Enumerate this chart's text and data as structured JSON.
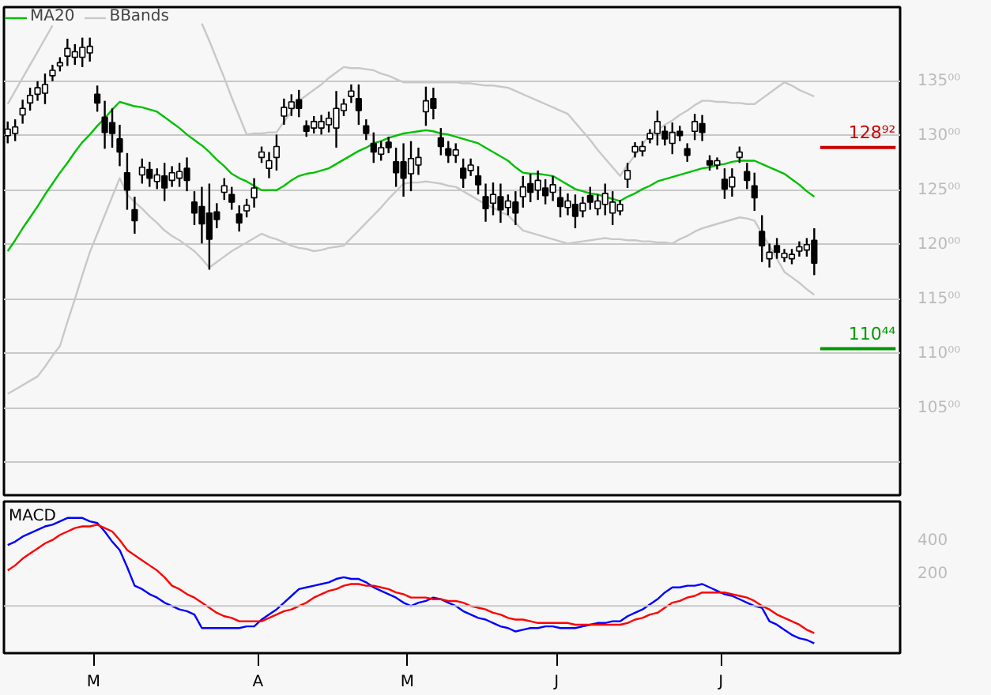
{
  "chart_data": [
    {
      "type": "candlestick",
      "legend": "top left",
      "grid": "y",
      "tick_labels": "y",
      "categories": [
        null,
        null,
        null,
        null,
        null,
        null,
        null,
        null,
        null,
        null,
        null,
        null,
        null,
        null,
        null,
        null,
        null,
        null,
        null,
        null,
        null,
        null,
        null,
        null,
        null,
        null,
        null,
        null,
        null,
        null,
        null,
        null,
        null,
        null,
        null,
        null,
        null,
        null,
        null,
        null,
        null,
        null,
        null,
        null,
        null,
        null,
        null,
        null,
        null,
        null,
        null,
        null,
        null,
        null,
        null,
        null,
        null,
        null,
        null,
        null,
        null,
        null,
        null,
        null,
        null,
        null,
        null,
        null,
        null,
        null,
        null,
        null,
        null,
        null,
        null,
        null,
        null,
        null,
        null,
        null,
        null,
        null,
        null,
        null,
        null,
        null,
        null,
        null,
        null,
        null,
        null,
        null,
        null,
        null,
        null,
        null,
        null,
        null,
        null,
        null,
        null,
        null,
        null,
        null,
        null,
        null,
        null,
        null,
        null
      ],
      "ohlc": [
        [
          130.0,
          131.3,
          129.3,
          130.6
        ],
        [
          130.2,
          131.5,
          129.5,
          130.8
        ],
        [
          131.9,
          133.3,
          131.1,
          132.5
        ],
        [
          133.0,
          134.4,
          132.3,
          133.7
        ],
        [
          133.8,
          135.0,
          133.2,
          134.4
        ],
        [
          133.9,
          135.7,
          132.9,
          134.7
        ],
        [
          135.5,
          136.5,
          135.0,
          136.0
        ],
        [
          136.4,
          137.2,
          135.9,
          136.7
        ],
        [
          137.3,
          138.9,
          136.4,
          138.0
        ],
        [
          137.2,
          138.4,
          136.5,
          137.7
        ],
        [
          137.2,
          139.0,
          136.3,
          138.1
        ],
        [
          137.6,
          139.0,
          136.8,
          138.2
        ],
        [
          133.8,
          134.6,
          132.2,
          133.0
        ],
        [
          131.7,
          133.2,
          128.8,
          130.3
        ],
        [
          131.2,
          132.5,
          128.9,
          130.2
        ],
        [
          129.7,
          131.0,
          127.2,
          128.5
        ],
        [
          126.6,
          128.4,
          123.2,
          125.0
        ],
        [
          123.2,
          124.4,
          121.0,
          122.2
        ],
        [
          126.4,
          127.9,
          125.6,
          127.1
        ],
        [
          126.9,
          127.6,
          125.3,
          126.1
        ],
        [
          125.8,
          127.0,
          125.1,
          126.4
        ],
        [
          126.3,
          127.5,
          124.0,
          125.2
        ],
        [
          125.9,
          127.2,
          125.3,
          126.6
        ],
        [
          126.1,
          127.5,
          125.3,
          126.7
        ],
        [
          127.0,
          128.0,
          124.9,
          125.9
        ],
        [
          123.9,
          124.9,
          121.8,
          122.9
        ],
        [
          123.5,
          125.3,
          120.1,
          121.9
        ],
        [
          122.9,
          125.6,
          117.7,
          120.5
        ],
        [
          123.0,
          123.8,
          121.5,
          122.3
        ],
        [
          124.8,
          126.1,
          124.1,
          125.4
        ],
        [
          124.6,
          125.3,
          123.2,
          123.9
        ],
        [
          122.8,
          123.6,
          121.2,
          122.0
        ],
        [
          123.1,
          124.2,
          122.5,
          123.6
        ],
        [
          124.3,
          126.1,
          123.4,
          125.2
        ],
        [
          128.0,
          129.0,
          127.5,
          128.5
        ],
        [
          127.0,
          128.5,
          126.1,
          127.7
        ],
        [
          128.0,
          130.1,
          126.8,
          129.0
        ],
        [
          131.8,
          133.4,
          131.0,
          132.6
        ],
        [
          132.5,
          133.8,
          131.8,
          133.1
        ],
        [
          133.3,
          134.2,
          131.7,
          132.5
        ],
        [
          130.9,
          131.4,
          129.9,
          130.4
        ],
        [
          130.7,
          131.8,
          130.2,
          131.3
        ],
        [
          130.7,
          131.9,
          130.1,
          131.3
        ],
        [
          131.0,
          132.2,
          130.3,
          131.6
        ],
        [
          130.7,
          134.1,
          128.9,
          132.5
        ],
        [
          132.3,
          133.4,
          131.8,
          132.9
        ],
        [
          133.6,
          134.7,
          133.0,
          134.1
        ],
        [
          133.4,
          134.7,
          131.0,
          132.3
        ],
        [
          130.9,
          131.5,
          129.6,
          130.2
        ],
        [
          129.3,
          130.3,
          127.5,
          128.5
        ],
        [
          128.3,
          129.5,
          127.7,
          128.9
        ],
        [
          129.4,
          129.9,
          128.4,
          128.9
        ],
        [
          127.6,
          128.9,
          125.3,
          126.6
        ],
        [
          127.6,
          129.3,
          124.4,
          126.1
        ],
        [
          126.5,
          129.5,
          124.9,
          127.9
        ],
        [
          127.3,
          128.9,
          126.4,
          128.0
        ],
        [
          132.2,
          134.5,
          130.9,
          133.2
        ],
        [
          133.4,
          134.4,
          131.5,
          132.5
        ],
        [
          129.8,
          130.7,
          128.2,
          129.0
        ],
        [
          128.8,
          129.5,
          127.5,
          128.2
        ],
        [
          128.2,
          129.3,
          127.5,
          128.7
        ],
        [
          127.0,
          127.9,
          125.2,
          126.1
        ],
        [
          126.8,
          127.9,
          126.3,
          127.3
        ],
        [
          126.3,
          127.2,
          124.6,
          125.5
        ],
        [
          124.4,
          125.6,
          122.1,
          123.3
        ],
        [
          123.8,
          125.7,
          122.7,
          124.6
        ],
        [
          124.4,
          125.6,
          122.0,
          123.2
        ],
        [
          123.4,
          124.6,
          122.7,
          124.0
        ],
        [
          123.9,
          124.9,
          121.8,
          122.9
        ],
        [
          124.4,
          126.3,
          123.4,
          125.3
        ],
        [
          125.6,
          126.5,
          123.9,
          124.8
        ],
        [
          125.0,
          126.8,
          124.1,
          125.9
        ],
        [
          125.2,
          126.0,
          123.7,
          124.5
        ],
        [
          124.8,
          126.3,
          124.0,
          125.5
        ],
        [
          124.3,
          125.3,
          122.5,
          123.5
        ],
        [
          123.4,
          124.7,
          122.7,
          124.0
        ],
        [
          123.7,
          124.6,
          121.5,
          122.6
        ],
        [
          123.1,
          124.4,
          122.5,
          123.8
        ],
        [
          124.5,
          125.3,
          123.2,
          123.9
        ],
        [
          123.3,
          124.6,
          122.7,
          124.0
        ],
        [
          123.7,
          125.6,
          122.7,
          124.7
        ],
        [
          122.9,
          124.9,
          121.8,
          123.9
        ],
        [
          123.1,
          124.1,
          122.7,
          123.7
        ],
        [
          126.0,
          127.5,
          125.2,
          126.8
        ],
        [
          128.5,
          129.4,
          128.0,
          129.0
        ],
        [
          128.6,
          129.5,
          128.1,
          129.0
        ],
        [
          129.7,
          130.6,
          129.3,
          130.2
        ],
        [
          130.2,
          132.3,
          129.1,
          131.3
        ],
        [
          130.4,
          130.9,
          129.1,
          129.7
        ],
        [
          129.3,
          131.2,
          128.3,
          130.3
        ],
        [
          130.4,
          130.9,
          129.5,
          130.0
        ],
        [
          128.8,
          129.3,
          127.6,
          128.2
        ],
        [
          130.4,
          132.0,
          129.6,
          131.3
        ],
        [
          131.1,
          131.9,
          129.5,
          130.3
        ],
        [
          127.7,
          128.2,
          126.8,
          127.3
        ],
        [
          127.3,
          128.0,
          126.9,
          127.7
        ],
        [
          126.0,
          127.0,
          124.2,
          125.1
        ],
        [
          125.3,
          127.0,
          124.4,
          126.2
        ],
        [
          128.0,
          129.0,
          127.5,
          128.5
        ],
        [
          126.7,
          127.5,
          125.1,
          125.9
        ],
        [
          125.4,
          126.6,
          123.1,
          124.3
        ],
        [
          121.2,
          122.7,
          118.4,
          119.9
        ],
        [
          118.7,
          120.1,
          117.9,
          119.3
        ],
        [
          119.9,
          120.6,
          118.7,
          119.3
        ],
        [
          118.8,
          119.6,
          118.4,
          119.2
        ],
        [
          118.7,
          119.6,
          118.2,
          119.1
        ],
        [
          119.4,
          120.3,
          118.9,
          119.8
        ],
        [
          119.5,
          120.6,
          118.9,
          120.0
        ],
        [
          120.4,
          121.5,
          117.2,
          118.3
        ]
      ],
      "series": [
        {
          "name": "MA20",
          "type": "line",
          "color": "#00c000",
          "values": [
            119.4,
            120.4,
            121.5,
            122.5,
            123.5,
            124.6,
            125.6,
            126.6,
            127.5,
            128.5,
            129.4,
            130.1,
            130.9,
            131.6,
            132.4,
            133.1,
            132.9,
            132.7,
            132.6,
            132.4,
            132.2,
            131.7,
            131.2,
            130.7,
            130.1,
            129.6,
            129.1,
            128.5,
            127.8,
            127.2,
            126.5,
            126.1,
            125.8,
            125.4,
            125.0,
            125.0,
            125.0,
            125.4,
            125.9,
            126.3,
            126.5,
            126.6,
            126.8,
            127.0,
            127.4,
            127.8,
            128.2,
            128.6,
            128.9,
            129.3,
            129.5,
            129.8,
            130.0,
            130.2,
            130.3,
            130.4,
            130.5,
            130.4,
            130.2,
            130.1,
            129.9,
            129.7,
            129.5,
            129.3,
            128.9,
            128.5,
            128.1,
            127.7,
            127.1,
            126.6,
            126.5,
            126.5,
            126.4,
            126.3,
            125.9,
            125.5,
            125.1,
            124.9,
            124.7,
            124.6,
            124.4,
            124.2,
            124.0,
            124.4,
            124.7,
            125.1,
            125.4,
            125.8,
            126.0,
            126.2,
            126.4,
            126.6,
            126.8,
            127.0,
            127.1,
            127.3,
            127.4,
            127.6,
            127.7,
            127.7,
            127.7,
            127.4,
            127.1,
            126.8,
            126.5,
            126.0,
            125.5,
            124.9,
            124.4
          ]
        },
        {
          "name": "BBands",
          "type": "line",
          "color": "#c8c8c8",
          "values": [
            132.9,
            134.1,
            135.3,
            136.5,
            137.7,
            138.9,
            140.1,
            null,
            null,
            null,
            null,
            null,
            null,
            null,
            null,
            null,
            null,
            null,
            null,
            null,
            null,
            null,
            null,
            null,
            null,
            null,
            140.3,
            138.7,
            137.0,
            135.3,
            133.5,
            131.8,
            130.1,
            130.2,
            130.2,
            130.3,
            130.3,
            131.3,
            132.2,
            133.2,
            133.7,
            134.2,
            134.7,
            135.3,
            135.8,
            136.3,
            136.2,
            136.2,
            136.1,
            136.0,
            135.7,
            135.5,
            135.2,
            134.9,
            134.9,
            134.9,
            134.9,
            134.9,
            134.9,
            134.9,
            134.9,
            134.8,
            134.8,
            134.7,
            134.6,
            134.6,
            134.5,
            134.4,
            134.1,
            133.8,
            133.5,
            133.2,
            132.9,
            132.6,
            132.3,
            132.0,
            131.2,
            130.4,
            129.6,
            128.7,
            127.9,
            127.1,
            126.3,
            127.3,
            128.2,
            129.2,
            130.1,
            130.5,
            131.0,
            131.4,
            131.9,
            132.3,
            132.8,
            133.2,
            133.2,
            133.1,
            133.1,
            133.0,
            133.0,
            132.9,
            132.9,
            133.4,
            133.9,
            134.4,
            134.9,
            134.6,
            134.2,
            133.9,
            133.6
          ]
        },
        {
          "type": "line",
          "color": "#c8c8c8",
          "values": [
            106.3,
            106.7,
            107.1,
            107.5,
            107.9,
            108.8,
            109.8,
            110.7,
            112.9,
            115.0,
            117.2,
            119.3,
            121.0,
            122.7,
            124.4,
            126.1,
            124.6,
            123.9,
            123.3,
            122.6,
            122.0,
            121.3,
            120.8,
            120.4,
            119.9,
            119.4,
            118.7,
            117.9,
            118.4,
            118.9,
            119.4,
            119.8,
            120.2,
            120.6,
            121.0,
            120.7,
            120.5,
            120.2,
            119.9,
            119.7,
            119.6,
            119.4,
            119.5,
            119.7,
            119.8,
            119.9,
            120.6,
            121.3,
            122.0,
            122.7,
            123.4,
            124.2,
            124.9,
            125.6,
            125.7,
            125.7,
            125.8,
            125.7,
            125.6,
            125.4,
            125.3,
            124.9,
            124.5,
            124.1,
            123.7,
            123.4,
            123.0,
            122.7,
            122.0,
            121.3,
            121.1,
            120.9,
            120.7,
            120.5,
            120.3,
            120.1,
            120.2,
            120.3,
            120.4,
            120.5,
            120.6,
            120.5,
            120.5,
            120.4,
            120.4,
            120.3,
            120.3,
            120.2,
            120.2,
            120.1,
            120.5,
            120.8,
            121.2,
            121.5,
            121.7,
            121.9,
            122.1,
            122.3,
            122.5,
            122.4,
            122.2,
            121.0,
            119.9,
            118.7,
            117.5,
            117.0,
            116.5,
            115.9,
            115.4
          ]
        }
      ],
      "ylim": [
        97.0,
        141.8
      ],
      "yticks": [
        {
          "value": 100,
          "label": null
        },
        {
          "value": 105,
          "label": "105⁰⁰"
        },
        {
          "value": 110,
          "label": "110⁰⁰"
        },
        {
          "value": 115,
          "label": "115⁰⁰"
        },
        {
          "value": 120,
          "label": "120⁰⁰"
        },
        {
          "value": 125,
          "label": "125⁰⁰"
        },
        {
          "value": 130,
          "label": "130⁰⁰"
        },
        {
          "value": 135,
          "label": "135⁰⁰"
        }
      ],
      "ref_lines": [
        {
          "axis": "y",
          "value": 128.92,
          "label": "128⁹²",
          "color": "#cc0000"
        },
        {
          "axis": "y",
          "value": 110.44,
          "label": "110⁴⁴",
          "color": "#009900"
        }
      ]
    },
    {
      "type": "line",
      "title": "MACD",
      "grid": false,
      "categories": [
        null,
        null,
        null,
        null,
        null,
        null,
        null,
        null,
        null,
        null,
        null,
        null,
        "M",
        null,
        null,
        null,
        null,
        null,
        null,
        null,
        null,
        null,
        null,
        null,
        null,
        null,
        null,
        null,
        null,
        null,
        null,
        null,
        null,
        null,
        "A",
        null,
        null,
        null,
        null,
        null,
        null,
        null,
        null,
        null,
        null,
        null,
        null,
        null,
        null,
        null,
        null,
        null,
        null,
        null,
        "M",
        null,
        null,
        null,
        null,
        null,
        null,
        null,
        null,
        null,
        null,
        null,
        null,
        null,
        null,
        null,
        null,
        null,
        null,
        null,
        "J",
        null,
        null,
        null,
        null,
        null,
        null,
        null,
        null,
        null,
        null,
        null,
        null,
        null,
        null,
        null,
        null,
        null,
        null,
        null,
        null,
        null,
        "J",
        null,
        null,
        null,
        null,
        null,
        null,
        null,
        null,
        null,
        null,
        null,
        null
      ],
      "series": [
        {
          "color": "#0000ff",
          "values": [
            360,
            380,
            410,
            430,
            450,
            470,
            480,
            500,
            520,
            520,
            520,
            500,
            490,
            440,
            380,
            330,
            230,
            120,
            100,
            70,
            50,
            20,
            0,
            -20,
            -30,
            -50,
            -130,
            -130,
            -130,
            -130,
            -130,
            -130,
            -120,
            -120,
            -80,
            -50,
            -20,
            20,
            60,
            100,
            110,
            120,
            130,
            140,
            160,
            170,
            160,
            160,
            140,
            110,
            90,
            70,
            50,
            20,
            0,
            20,
            30,
            50,
            40,
            20,
            0,
            -30,
            -50,
            -70,
            -80,
            -100,
            -120,
            -130,
            -150,
            -140,
            -130,
            -130,
            -120,
            -120,
            -130,
            -130,
            -130,
            -120,
            -110,
            -100,
            -100,
            -90,
            -90,
            -60,
            -40,
            -20,
            10,
            40,
            80,
            110,
            110,
            120,
            120,
            130,
            110,
            90,
            70,
            60,
            40,
            20,
            0,
            -10,
            -90,
            -110,
            -140,
            -170,
            -190,
            -200,
            -220
          ]
        },
        {
          "color": "#ff0000",
          "values": [
            210,
            240,
            280,
            310,
            340,
            370,
            390,
            420,
            440,
            460,
            470,
            470,
            480,
            460,
            440,
            390,
            330,
            300,
            270,
            240,
            210,
            170,
            120,
            100,
            70,
            50,
            20,
            -10,
            -40,
            -60,
            -70,
            -90,
            -90,
            -90,
            -90,
            -70,
            -50,
            -30,
            -20,
            0,
            20,
            50,
            70,
            90,
            100,
            120,
            130,
            130,
            120,
            120,
            110,
            100,
            80,
            70,
            50,
            50,
            50,
            40,
            40,
            30,
            30,
            20,
            0,
            -10,
            -20,
            -40,
            -50,
            -70,
            -80,
            -80,
            -90,
            -100,
            -100,
            -100,
            -100,
            -100,
            -110,
            -110,
            -110,
            -110,
            -110,
            -110,
            -110,
            -100,
            -80,
            -70,
            -50,
            -40,
            -10,
            20,
            30,
            50,
            60,
            80,
            80,
            80,
            80,
            70,
            60,
            50,
            30,
            0,
            -20,
            -50,
            -70,
            -90,
            -110,
            -140,
            -160
          ]
        }
      ],
      "ylim": [
        -278,
        617
      ],
      "yticks": [
        200,
        400
      ],
      "ref_lines": [
        {
          "axis": "y",
          "value": 0,
          "color": "#c8c8c8"
        }
      ]
    }
  ]
}
